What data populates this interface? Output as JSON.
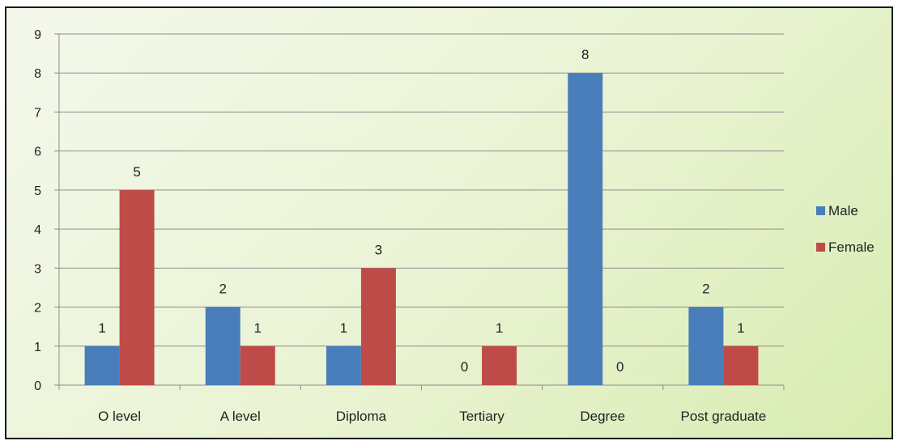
{
  "chart_data": {
    "type": "bar",
    "categories": [
      "O level",
      "A level",
      "Diploma",
      "Tertiary",
      "Degree",
      "Post graduate"
    ],
    "series": [
      {
        "name": "Male",
        "values": [
          1,
          2,
          1,
          0,
          8,
          2
        ],
        "color": "#4a7ebb"
      },
      {
        "name": "Female",
        "values": [
          5,
          1,
          3,
          1,
          0,
          1
        ],
        "color": "#be4b48"
      }
    ],
    "ylim": [
      0,
      9
    ],
    "yticks": [
      0,
      1,
      2,
      3,
      4,
      5,
      6,
      7,
      8,
      9
    ],
    "title": "",
    "xlabel": "",
    "ylabel": "",
    "grid": true,
    "legend_position": "right",
    "data_labels": true
  }
}
